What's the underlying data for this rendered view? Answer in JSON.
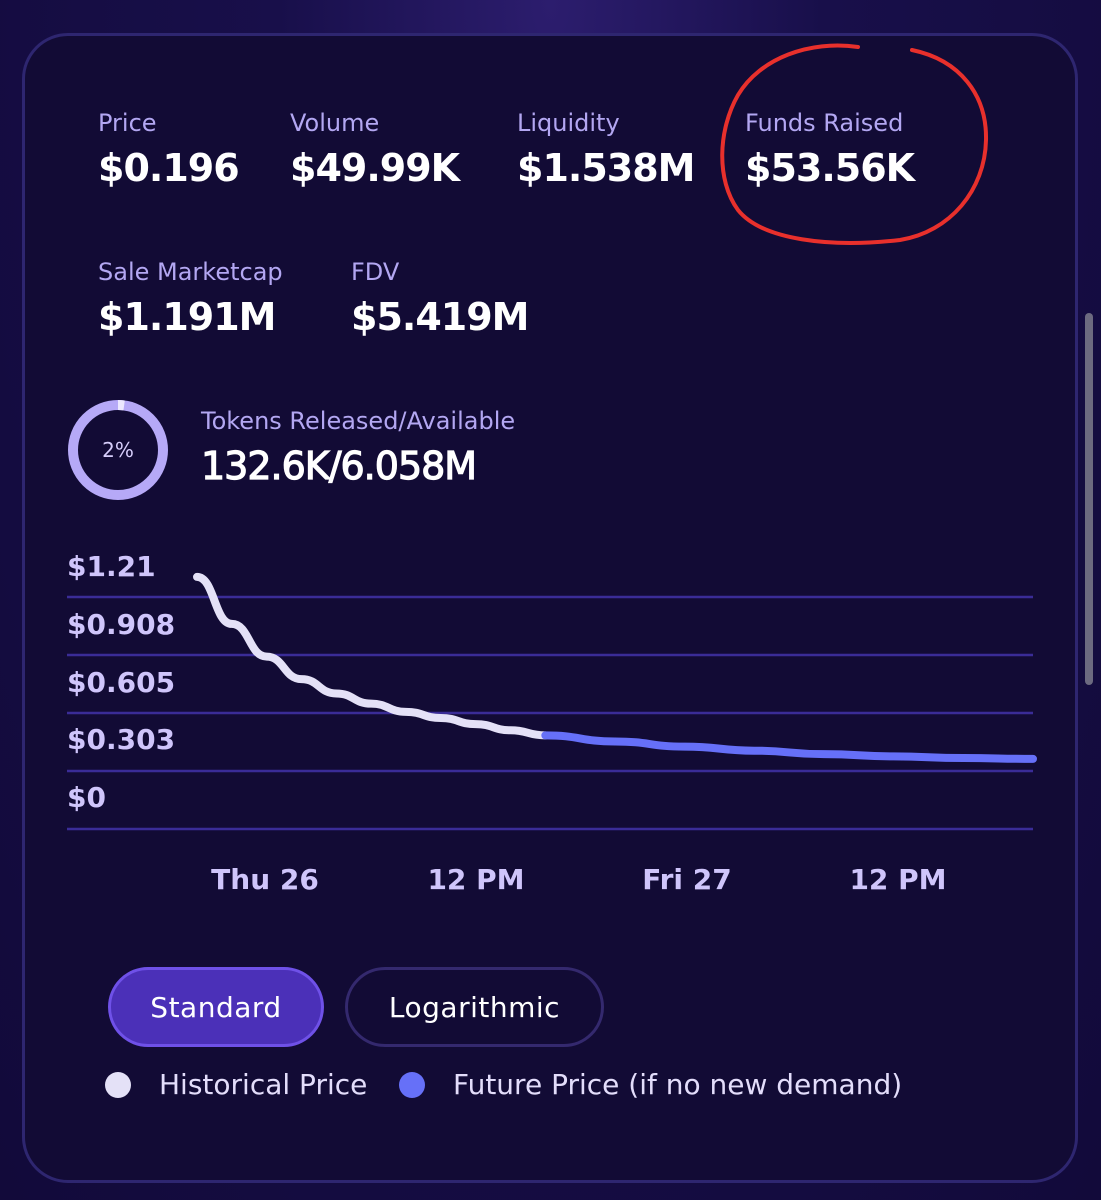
{
  "stats": [
    {
      "label": "Price",
      "value": "$0.196"
    },
    {
      "label": "Volume",
      "value": "$49.99K"
    },
    {
      "label": "Liquidity",
      "value": "$1.538M"
    },
    {
      "label": "Funds Raised",
      "value": "$53.56K"
    },
    {
      "label": "Sale Marketcap",
      "value": "$1.191M"
    },
    {
      "label": "FDV",
      "value": "$5.419M"
    }
  ],
  "tokens": {
    "label": "Tokens Released/Available",
    "value": "132.6K/6.058M",
    "percent_text": "2%",
    "percent": 2.19
  },
  "chart_data": {
    "type": "line",
    "y_tick_labels": [
      "$1.21",
      "$0.908",
      "$0.605",
      "$0.303",
      "$0"
    ],
    "x_tick_labels": [
      "Thu 26",
      "12 PM",
      "Fri 27",
      "12 PM"
    ],
    "series": [
      {
        "name": "Historical Price",
        "color": "#e4e1f7",
        "points": [
          [
            0.0,
            0.93
          ],
          [
            0.25,
            0.7
          ],
          [
            0.5,
            0.54
          ],
          [
            0.75,
            0.43
          ],
          [
            1.0,
            0.36
          ],
          [
            1.25,
            0.31
          ],
          [
            1.5,
            0.27
          ],
          [
            1.75,
            0.24
          ],
          [
            2.0,
            0.21
          ],
          [
            2.25,
            0.18
          ],
          [
            2.5,
            0.155
          ]
        ]
      },
      {
        "name": "Future Price (if no new demand)",
        "color": "#6670f8",
        "points": [
          [
            2.5,
            0.155
          ],
          [
            3.0,
            0.125
          ],
          [
            3.5,
            0.1
          ],
          [
            4.0,
            0.08
          ],
          [
            4.5,
            0.063
          ],
          [
            5.0,
            0.052
          ],
          [
            5.5,
            0.044
          ],
          [
            6.0,
            0.04
          ]
        ]
      }
    ],
    "ylim": [
      -0.303,
      1.21
    ],
    "grid": true,
    "legend": "bottom"
  },
  "scale_buttons": {
    "standard": "Standard",
    "logarithmic": "Logarithmic",
    "selected": "standard"
  },
  "legend": [
    {
      "label": "Historical Price",
      "color": "#e4e1f7"
    },
    {
      "label": "Future Price (if no new demand)",
      "color": "#6670f8"
    }
  ],
  "colors": {
    "accent": "#4b30b8",
    "label": "#b3a7f2",
    "annotation": "#e8302c"
  }
}
